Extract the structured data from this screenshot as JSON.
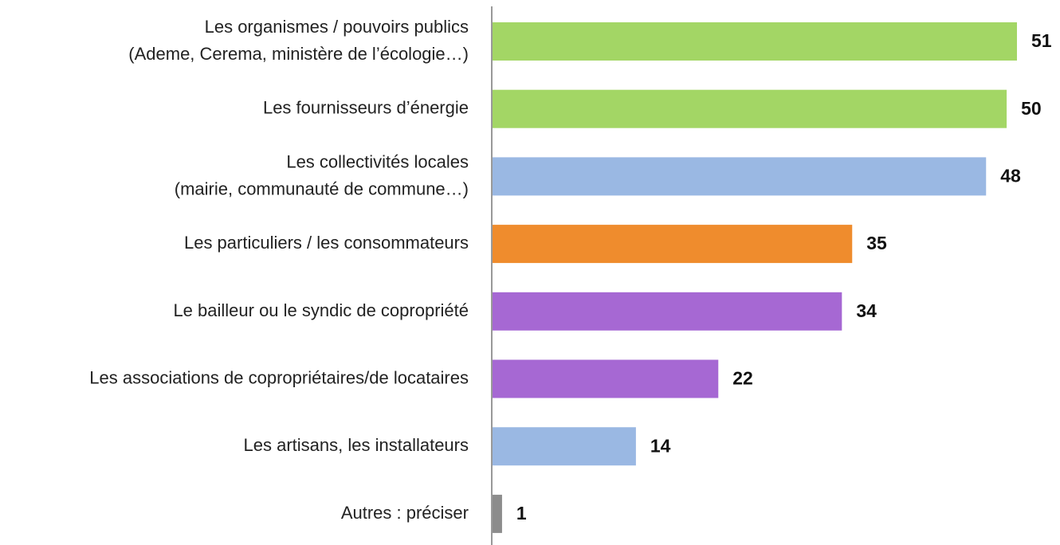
{
  "chart_data": {
    "type": "hbar",
    "categories": [
      [
        "Les organismes / pouvoirs publics",
        "(Ademe, Cerema, ministère de l’écologie…)"
      ],
      [
        "Les fournisseurs d’énergie"
      ],
      [
        "Les collectivités locales",
        "(mairie, communauté de commune…)"
      ],
      [
        "Les particuliers / les consommateurs"
      ],
      [
        "Le bailleur ou le syndic de copropriété"
      ],
      [
        "Les associations de copropriétaires/de locataires"
      ],
      [
        "Les artisans, les installateurs"
      ],
      [
        "Autres : préciser"
      ]
    ],
    "values": [
      51,
      50,
      48,
      35,
      34,
      22,
      14,
      1
    ],
    "colors": [
      "#a3d665",
      "#a3d665",
      "#9ab8e3",
      "#ef8c2d",
      "#a668d3",
      "#a668d3",
      "#9ab8e3",
      "#8c8c8c"
    ]
  }
}
